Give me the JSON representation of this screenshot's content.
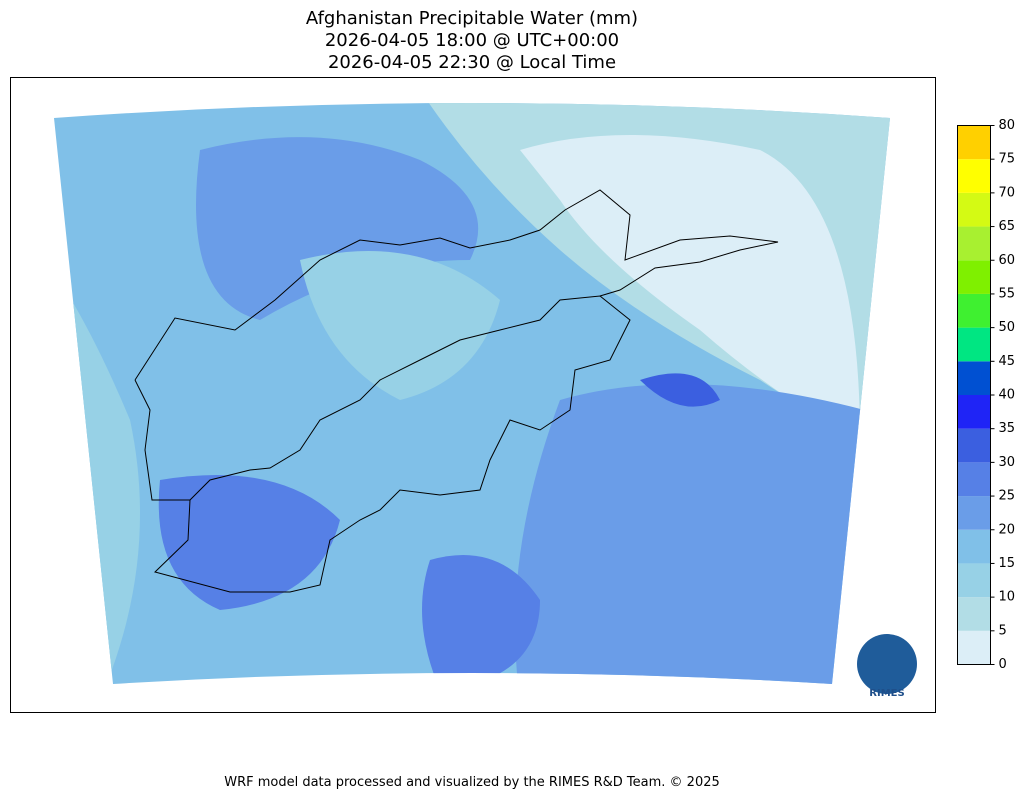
{
  "title": [
    "Afghanistan Precipitable Water (mm)",
    "2026-04-05 18:00 @ UTC+00:00",
    "2026-04-05 22:30 @ Local Time"
  ],
  "colorbar": {
    "ticks": [
      0,
      5,
      10,
      15,
      20,
      25,
      30,
      35,
      40,
      45,
      50,
      55,
      60,
      65,
      70,
      75,
      80
    ],
    "colors": [
      "#dceef7",
      "#b2dde6",
      "#97d1e6",
      "#80c0e8",
      "#6a9de8",
      "#5680e6",
      "#3b5fe0",
      "#1f24f6",
      "#0050d2",
      "#00e682",
      "#3ff030",
      "#7ff000",
      "#a8f030",
      "#d4fa14",
      "#ffff00",
      "#ffd000"
    ]
  },
  "logo": "RIMES",
  "footer": "WRF model data processed and visualized by the RIMES R&D Team. © 2025"
}
